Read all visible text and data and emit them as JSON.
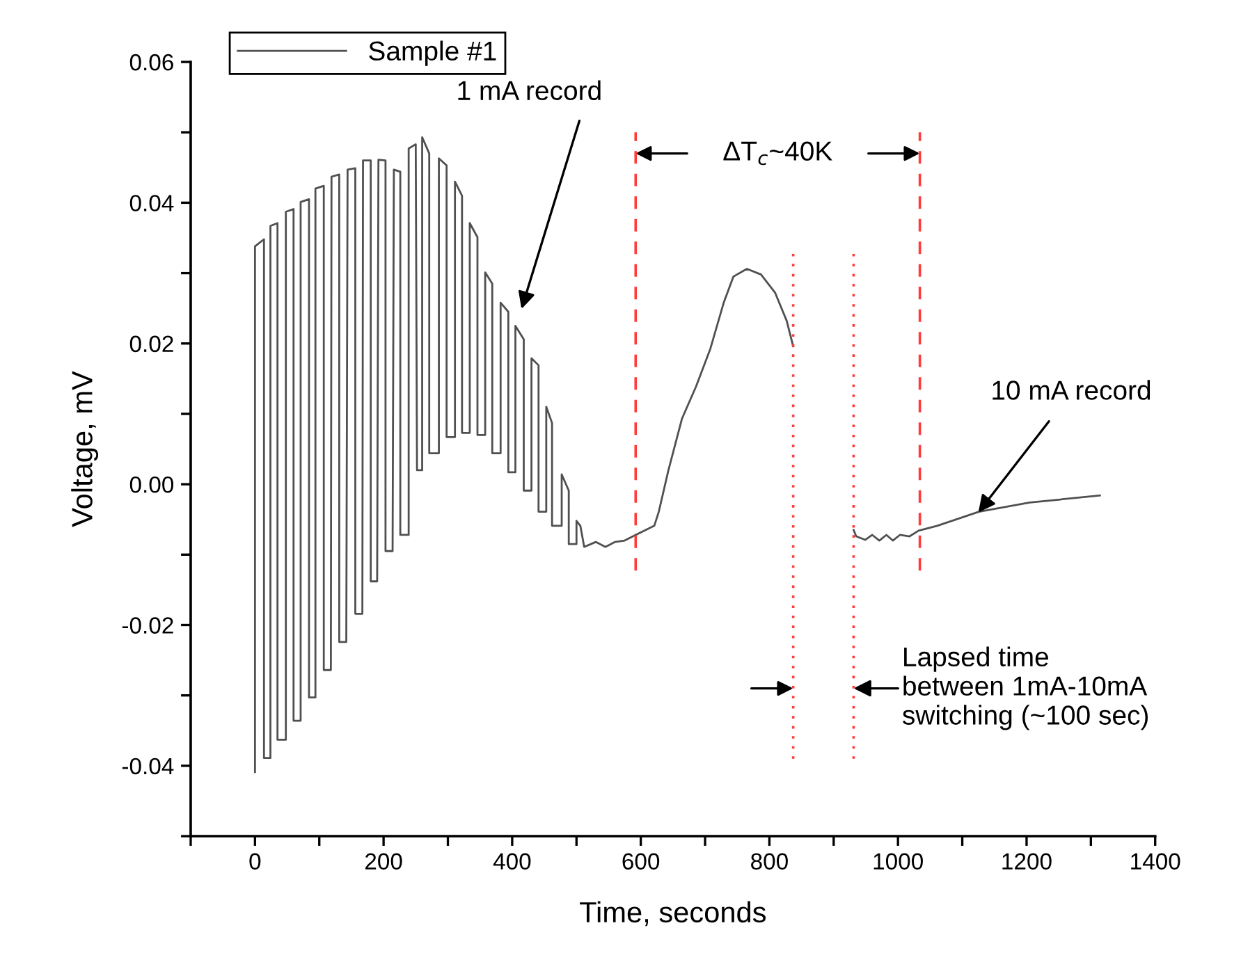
{
  "chart_data": {
    "type": "line",
    "xlabel": "Time, seconds",
    "ylabel": "Voltage, mV",
    "xlim": [
      -100,
      1400
    ],
    "ylim": [
      -0.05,
      0.06
    ],
    "xticks": [
      {
        "value": -100,
        "label": null
      },
      0,
      {
        "value": 100,
        "label": null
      },
      200,
      {
        "value": 300,
        "label": null
      },
      400,
      {
        "value": 500,
        "label": null
      },
      600,
      {
        "value": 700,
        "label": null
      },
      800,
      {
        "value": 900,
        "label": null
      },
      1000,
      {
        "value": 1100,
        "label": null
      },
      1200,
      {
        "value": 1300,
        "label": null
      },
      1400
    ],
    "yticks": [
      {
        "value": -0.05,
        "label": null
      },
      -0.04,
      {
        "value": -0.03,
        "label": null
      },
      -0.02,
      {
        "value": -0.01,
        "label": null
      },
      {
        "value": 0,
        "label": "0.00"
      },
      {
        "value": 0.01,
        "label": null
      },
      0.02,
      {
        "value": 0.03,
        "label": null
      },
      0.04,
      {
        "value": 0.05,
        "label": null
      },
      0.06
    ],
    "legend": "top left",
    "grid": false,
    "marker": "none",
    "line_style": "solid",
    "series": [
      {
        "name": "Sample #1",
        "color": "#505050",
        "x": [
          0,
          0,
          14,
          14,
          24,
          24,
          35,
          35,
          48,
          48,
          60,
          60,
          71,
          71,
          84,
          84,
          94,
          94,
          107,
          107,
          118,
          119,
          131,
          131,
          142,
          144,
          156,
          156,
          167,
          168,
          180,
          180,
          190,
          192,
          203,
          203,
          214,
          216,
          226,
          226,
          239,
          239,
          250,
          252,
          260,
          260,
          271,
          271,
          286,
          286,
          298,
          298,
          311,
          311,
          322,
          322,
          334,
          334,
          346,
          346,
          358,
          358,
          369,
          369,
          382,
          382,
          394,
          394,
          405,
          405,
          418,
          418,
          430,
          430,
          441,
          441,
          453,
          453,
          462,
          462,
          477,
          477,
          488,
          488,
          500,
          500,
          506,
          512,
          530,
          545,
          560,
          575,
          592,
          621,
          628,
          643,
          664,
          686,
          708,
          729,
          744,
          765,
          787,
          809,
          827,
          837,
          880,
          931,
          935,
          949,
          960,
          971,
          982,
          992,
          1003,
          1018,
          1032,
          1061,
          1126,
          1205,
          1314
        ],
        "values": [
          -0.0409,
          0.0338,
          0.0348,
          -0.0389,
          -0.0389,
          0.0367,
          0.0371,
          -0.0363,
          -0.0363,
          0.0387,
          0.0391,
          -0.0336,
          -0.0336,
          0.0401,
          0.0405,
          -0.0303,
          -0.0303,
          0.042,
          0.0424,
          -0.0264,
          -0.0264,
          0.0437,
          0.044,
          -0.0224,
          -0.0224,
          0.0447,
          0.0449,
          -0.0184,
          -0.0184,
          0.046,
          0.046,
          -0.0138,
          -0.0138,
          0.0461,
          0.046,
          -0.0095,
          -0.0095,
          0.0447,
          0.0444,
          -0.0072,
          -0.0072,
          0.0477,
          0.0483,
          0.002,
          0.002,
          0.0493,
          0.047,
          0.0044,
          0.0044,
          0.0463,
          0.0453,
          0.0067,
          0.0067,
          0.043,
          0.041,
          0.0073,
          0.0073,
          0.0371,
          0.0351,
          0.007,
          0.007,
          0.0301,
          0.0285,
          0.0044,
          0.0044,
          0.0258,
          0.0245,
          0.0017,
          0.0017,
          0.0225,
          0.0206,
          -0.0009,
          -0.0009,
          0.0179,
          0.0169,
          -0.0039,
          -0.0039,
          0.011,
          0.0087,
          -0.0059,
          -0.0059,
          0.0014,
          -0.0009,
          -0.0085,
          -0.0085,
          -0.0052,
          -0.0059,
          -0.0089,
          -0.0082,
          -0.0089,
          -0.0082,
          -0.008,
          -0.0072,
          -0.0059,
          -0.0039,
          0.002,
          0.0093,
          0.0139,
          0.0192,
          0.0258,
          0.0295,
          0.0306,
          0.0298,
          0.0272,
          0.0232,
          0.0196,
          null,
          -0.0065,
          -0.0074,
          -0.0079,
          -0.0072,
          -0.008,
          -0.0072,
          -0.008,
          -0.0072,
          -0.0074,
          -0.0066,
          -0.0059,
          -0.0039,
          -0.0026,
          -0.0016
        ]
      }
    ],
    "ref_lines": [
      {
        "axis": "x",
        "value": 592,
        "color": "#ff3b3b",
        "line_style": "dashed"
      },
      {
        "axis": "x",
        "value": 1034,
        "color": "#ff3b3b",
        "line_style": "dashed"
      },
      {
        "axis": "x",
        "value": 837,
        "color": "#ff3b3b",
        "line_style": "dotted"
      },
      {
        "axis": "x",
        "value": 931,
        "color": "#ff3b3b",
        "line_style": "dotted"
      }
    ],
    "annotations": [
      "1 mA record",
      "ΔT$_{c}$~40K",
      {
        "text": "10 mA record",
        "x": 1125,
        "y": -0.004
      },
      {
        "text": "Lapsed time\nbetween 1mA-10mA\nswitching (~100 sec)",
        "x": 931,
        "y": -0.029
      }
    ]
  }
}
